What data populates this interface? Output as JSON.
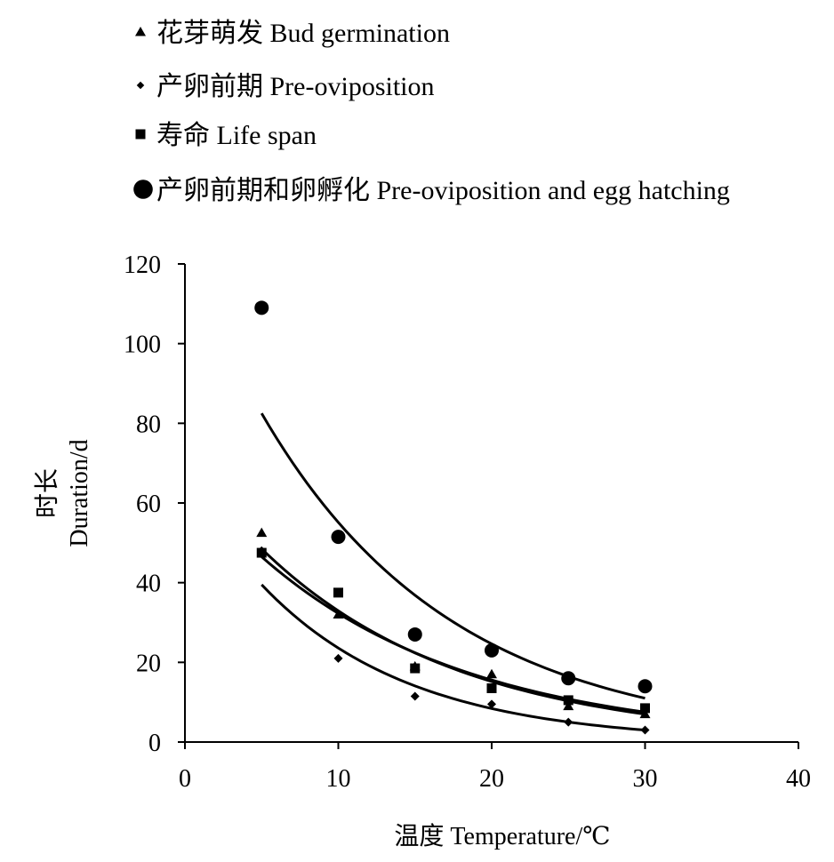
{
  "chart_data": {
    "type": "scatter",
    "title": "",
    "xlabel": "温度 Temperature/℃",
    "ylabel_line1": "时长",
    "ylabel_line2": "Duration/d",
    "xlim": [
      0,
      40
    ],
    "ylim": [
      0,
      120
    ],
    "xticks": [
      "0",
      "10",
      "20",
      "30",
      "40"
    ],
    "yticks": [
      "0",
      "20",
      "40",
      "60",
      "80",
      "100",
      "120"
    ],
    "legend_position": "top-left",
    "x": [
      5,
      10,
      15,
      20,
      25,
      30
    ],
    "series": [
      {
        "name": "花芽萌发 Bud germination",
        "marker": "triangle",
        "values": [
          52.5,
          32,
          19,
          17,
          9,
          7
        ],
        "trend": {
          "type": "exponential",
          "at5": 48.5,
          "at30": 7.0
        }
      },
      {
        "name": "产卵前期 Pre-oviposition",
        "marker": "diamond",
        "values": [
          48,
          21,
          11.5,
          9.5,
          5,
          3
        ],
        "trend": {
          "type": "exponential",
          "at5": 39.5,
          "at30": 3.0
        }
      },
      {
        "name": "寿命 Life span",
        "marker": "square",
        "values": [
          47.5,
          37.5,
          18.5,
          13.5,
          10.5,
          8.5
        ],
        "trend": {
          "type": "exponential",
          "at5": 46.5,
          "at30": 7.5
        }
      },
      {
        "name": "产卵前期和卵孵化 Pre-oviposition and egg hatching",
        "marker": "circle",
        "values": [
          109,
          51.5,
          27,
          23,
          16,
          14
        ],
        "trend": {
          "type": "exponential",
          "at5": 82.5,
          "at30": 11.0
        }
      }
    ]
  }
}
